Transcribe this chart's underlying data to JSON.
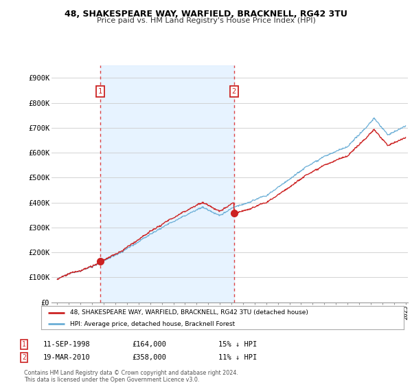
{
  "title1": "48, SHAKESPEARE WAY, WARFIELD, BRACKNELL, RG42 3TU",
  "title2": "Price paid vs. HM Land Registry's House Price Index (HPI)",
  "ylabel_ticks": [
    "£0",
    "£100K",
    "£200K",
    "£300K",
    "£400K",
    "£500K",
    "£600K",
    "£700K",
    "£800K",
    "£900K"
  ],
  "ytick_values": [
    0,
    100000,
    200000,
    300000,
    400000,
    500000,
    600000,
    700000,
    800000,
    900000
  ],
  "ylim": [
    0,
    950000
  ],
  "xlim_start": 1994.5,
  "xlim_end": 2025.2,
  "purchase1_date": 1998.7,
  "purchase1_price": 164000,
  "purchase2_date": 2010.22,
  "purchase2_price": 358000,
  "hpi_color": "#6aaed6",
  "hpi_fill_color": "#ddeeff",
  "price_color": "#cc2222",
  "vline_color": "#dd4444",
  "legend_label1": "48, SHAKESPEARE WAY, WARFIELD, BRACKNELL, RG42 3TU (detached house)",
  "legend_label2": "HPI: Average price, detached house, Bracknell Forest",
  "annotation1_label": "1",
  "annotation1_date": "11-SEP-1998",
  "annotation1_price": "£164,000",
  "annotation1_hpi": "15% ↓ HPI",
  "annotation2_label": "2",
  "annotation2_date": "19-MAR-2010",
  "annotation2_price": "£358,000",
  "annotation2_hpi": "11% ↓ HPI",
  "footer": "Contains HM Land Registry data © Crown copyright and database right 2024.\nThis data is licensed under the Open Government Licence v3.0.",
  "background_color": "#ffffff",
  "grid_color": "#cccccc"
}
